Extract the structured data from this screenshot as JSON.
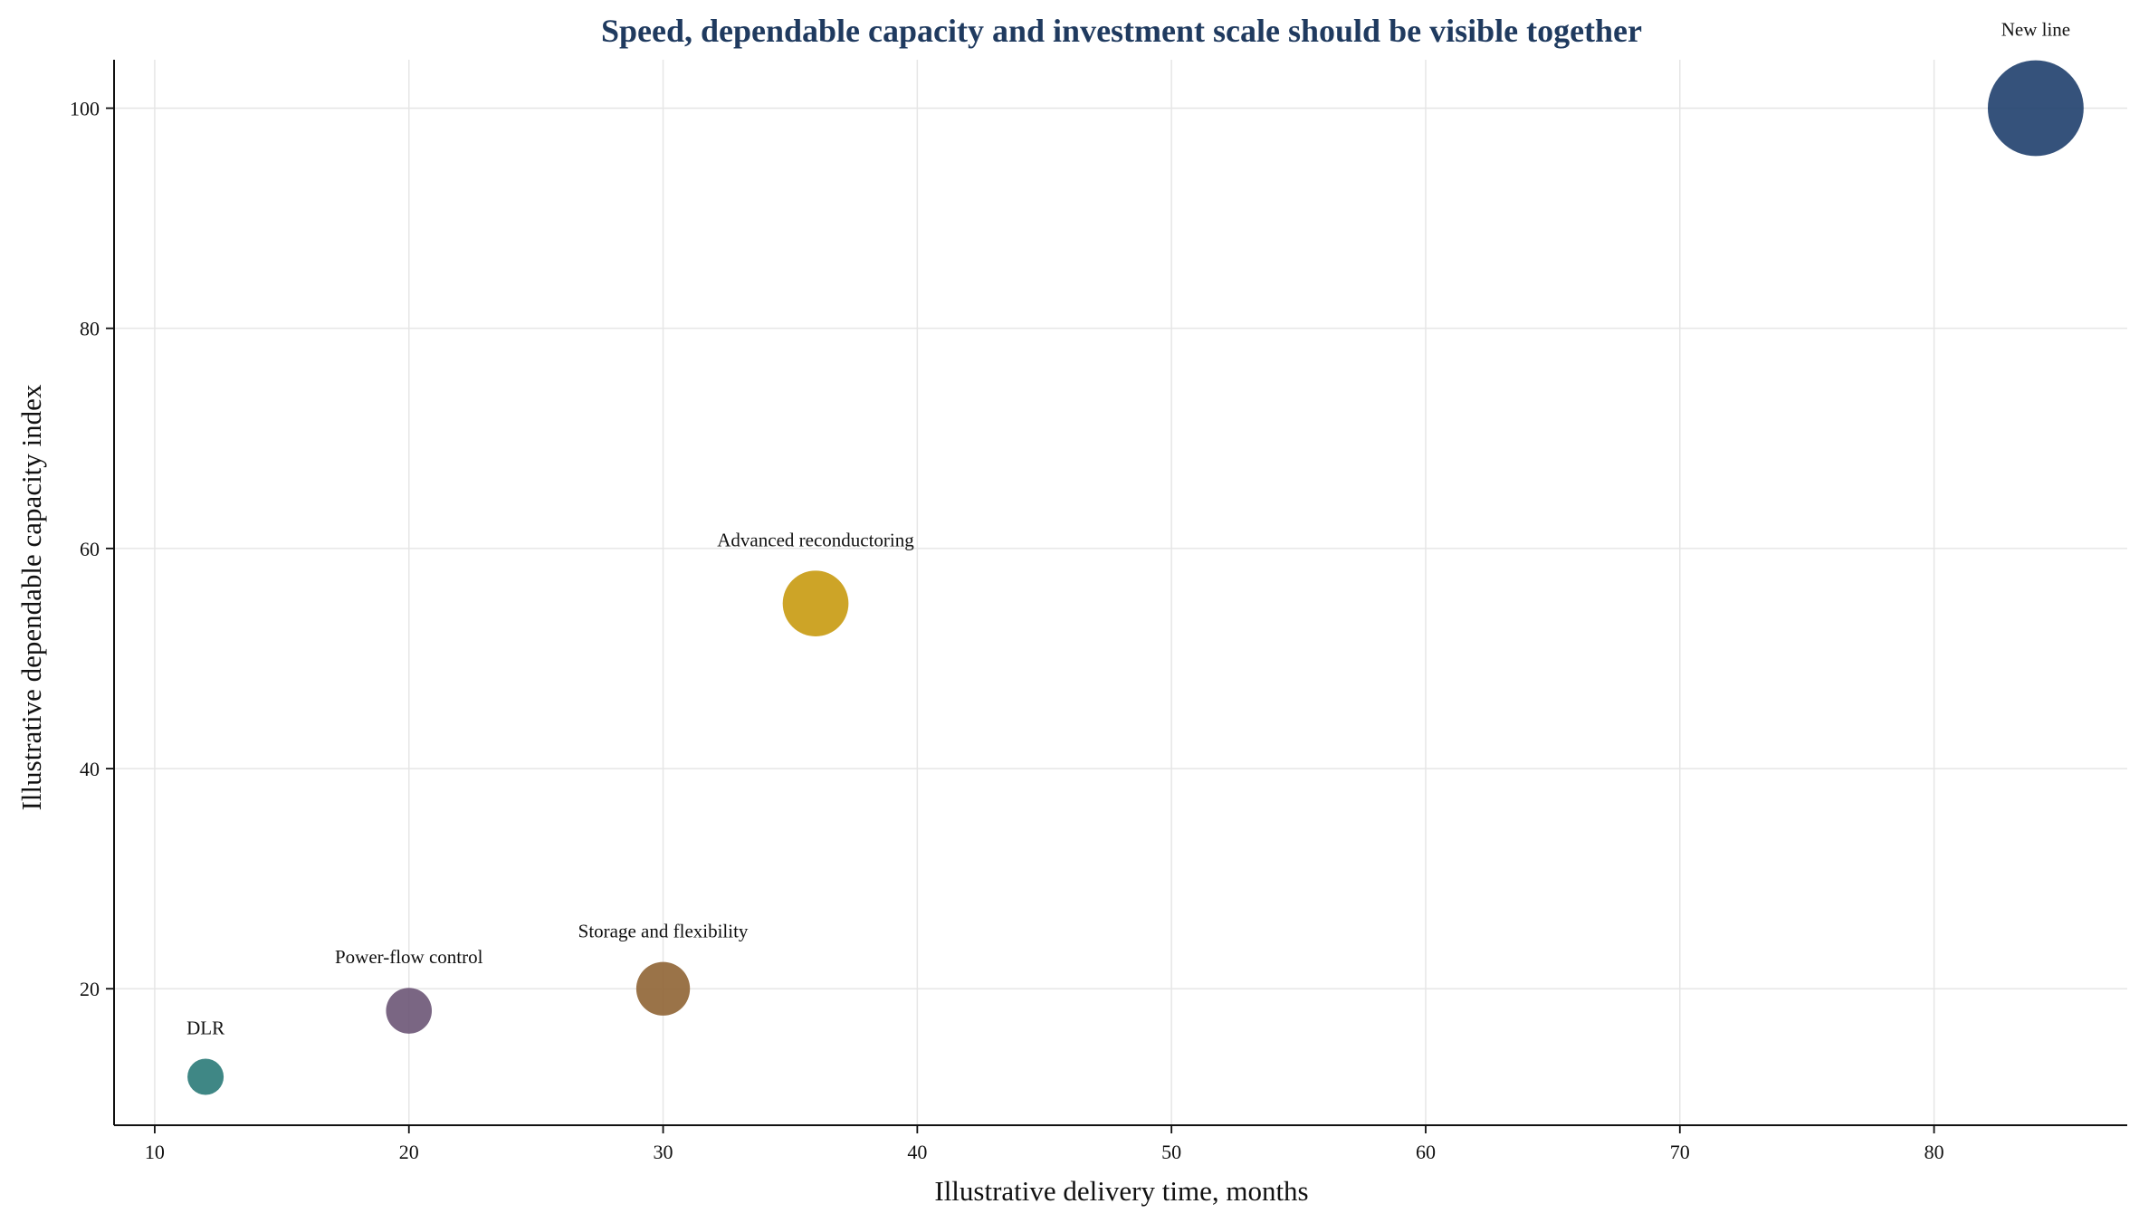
{
  "chart_data": {
    "type": "scatter",
    "title": "Speed, dependable capacity and investment scale should be visible together",
    "xlabel": "Illustrative delivery time, months",
    "ylabel": "Illustrative dependable capacity index",
    "xlim": [
      8.4,
      87.6
    ],
    "ylim": [
      7.6,
      104.4
    ],
    "xticks": [
      10,
      20,
      30,
      40,
      50,
      60,
      70,
      80
    ],
    "yticks": [
      20,
      40,
      60,
      80,
      100
    ],
    "grid": true,
    "legend": "none",
    "points": [
      {
        "label": "DLR",
        "x": 12,
        "y": 12,
        "size": 1,
        "color": "#2a7a78"
      },
      {
        "label": "Power-flow control",
        "x": 20,
        "y": 18,
        "size": 1.6,
        "color": "#6b5576"
      },
      {
        "label": "Storage and flexibility",
        "x": 30,
        "y": 20,
        "size": 2.2,
        "color": "#8f6434"
      },
      {
        "label": "Advanced reconductoring",
        "x": 36,
        "y": 55,
        "size": 3.3,
        "color": "#c89a10"
      },
      {
        "label": "New line",
        "x": 84,
        "y": 100,
        "size": 7,
        "color": "#1f3f6d"
      }
    ]
  }
}
